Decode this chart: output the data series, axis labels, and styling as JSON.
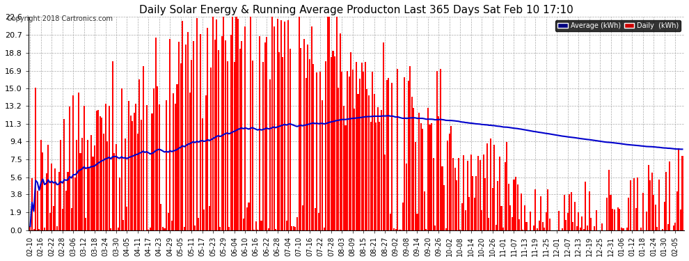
{
  "title": "Daily Solar Energy & Running Average Producton Last 365 Days Sat Feb 10 17:10",
  "copyright_text": "Copyright 2018 Cartronics.com",
  "yticks": [
    0.0,
    1.9,
    3.8,
    5.6,
    7.5,
    9.4,
    11.3,
    13.2,
    15.0,
    16.9,
    18.8,
    20.7,
    22.6
  ],
  "ymax": 22.6,
  "ymin": 0.0,
  "bar_color": "#ff0000",
  "avg_color": "#0000cc",
  "background_color": "#ffffff",
  "plot_bg_color": "#ffffff",
  "grid_color": "#aaaaaa",
  "title_color": "#000000",
  "legend_avg_bg": "#000080",
  "legend_daily_bg": "#cc0000",
  "figsize": [
    9.9,
    3.75
  ],
  "dpi": 100,
  "xlabels": [
    "02-10",
    "02-16",
    "02-22",
    "02-28",
    "03-06",
    "03-12",
    "03-18",
    "03-24",
    "03-30",
    "04-05",
    "04-11",
    "04-17",
    "04-23",
    "04-29",
    "05-05",
    "05-11",
    "05-17",
    "05-23",
    "05-29",
    "06-04",
    "06-10",
    "06-16",
    "06-22",
    "06-28",
    "07-04",
    "07-10",
    "07-16",
    "07-22",
    "07-28",
    "08-03",
    "08-09",
    "08-15",
    "08-21",
    "08-27",
    "09-02",
    "09-08",
    "09-14",
    "09-20",
    "09-26",
    "10-02",
    "10-08",
    "10-14",
    "10-20",
    "10-26",
    "11-01",
    "11-07",
    "11-13",
    "11-19",
    "11-25",
    "12-01",
    "12-07",
    "12-13",
    "12-19",
    "12-25",
    "12-31",
    "01-06",
    "01-12",
    "01-18",
    "01-24",
    "01-30",
    "02-05"
  ],
  "xlabels_pos": [
    0,
    6,
    12,
    18,
    24,
    30,
    36,
    42,
    48,
    54,
    60,
    66,
    72,
    78,
    84,
    90,
    96,
    102,
    108,
    114,
    120,
    126,
    132,
    138,
    144,
    150,
    156,
    162,
    168,
    174,
    180,
    186,
    192,
    198,
    204,
    210,
    216,
    222,
    228,
    234,
    240,
    246,
    252,
    258,
    264,
    270,
    276,
    282,
    288,
    294,
    300,
    306,
    312,
    318,
    324,
    330,
    336,
    342,
    348,
    354,
    360
  ]
}
